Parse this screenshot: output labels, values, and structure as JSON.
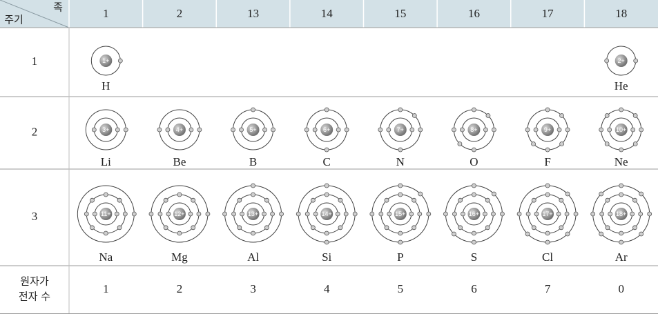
{
  "table": {
    "corner": {
      "group_label": "족",
      "period_label": "주기"
    },
    "groups": [
      "1",
      "2",
      "13",
      "14",
      "15",
      "16",
      "17",
      "18"
    ],
    "rows": [
      {
        "period": "1",
        "atoms": [
          {
            "symbol": "H",
            "nucleus": "1+",
            "shells": [
              1
            ]
          },
          null,
          null,
          null,
          null,
          null,
          null,
          {
            "symbol": "He",
            "nucleus": "2+",
            "shells": [
              2
            ]
          }
        ]
      },
      {
        "period": "2",
        "atoms": [
          {
            "symbol": "Li",
            "nucleus": "3+",
            "shells": [
              2,
              1
            ]
          },
          {
            "symbol": "Be",
            "nucleus": "4+",
            "shells": [
              2,
              2
            ]
          },
          {
            "symbol": "B",
            "nucleus": "5+",
            "shells": [
              2,
              3
            ]
          },
          {
            "symbol": "C",
            "nucleus": "6+",
            "shells": [
              2,
              4
            ]
          },
          {
            "symbol": "N",
            "nucleus": "7+",
            "shells": [
              2,
              5
            ]
          },
          {
            "symbol": "O",
            "nucleus": "8+",
            "shells": [
              2,
              6
            ]
          },
          {
            "symbol": "F",
            "nucleus": "9+",
            "shells": [
              2,
              7
            ]
          },
          {
            "symbol": "Ne",
            "nucleus": "10+",
            "shells": [
              2,
              8
            ]
          }
        ]
      },
      {
        "period": "3",
        "atoms": [
          {
            "symbol": "Na",
            "nucleus": "11+",
            "shells": [
              2,
              8,
              1
            ]
          },
          {
            "symbol": "Mg",
            "nucleus": "12+",
            "shells": [
              2,
              8,
              2
            ]
          },
          {
            "symbol": "Al",
            "nucleus": "13+",
            "shells": [
              2,
              8,
              3
            ]
          },
          {
            "symbol": "Si",
            "nucleus": "14+",
            "shells": [
              2,
              8,
              4
            ]
          },
          {
            "symbol": "P",
            "nucleus": "15+",
            "shells": [
              2,
              8,
              5
            ]
          },
          {
            "symbol": "S",
            "nucleus": "16+",
            "shells": [
              2,
              8,
              6
            ]
          },
          {
            "symbol": "Cl",
            "nucleus": "17+",
            "shells": [
              2,
              8,
              7
            ]
          },
          {
            "symbol": "Ar",
            "nucleus": "18+",
            "shells": [
              2,
              8,
              8
            ]
          }
        ]
      }
    ],
    "valence": {
      "label_lines": [
        "원자가",
        "전자 수"
      ],
      "values": [
        "1",
        "2",
        "3",
        "4",
        "5",
        "6",
        "7",
        "0"
      ]
    }
  }
}
